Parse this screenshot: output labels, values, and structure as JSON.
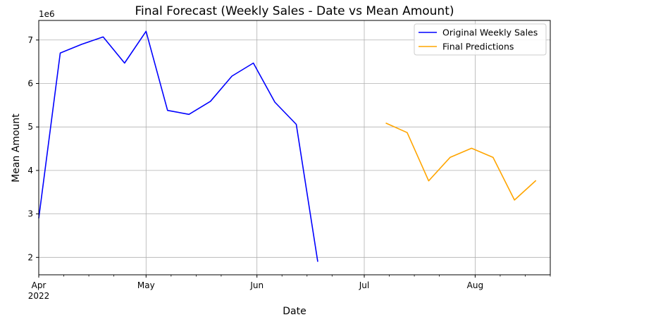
{
  "chart_data": {
    "type": "line",
    "title": "Final Forecast (Weekly Sales - Date vs Mean Amount)",
    "xlabel": "Date",
    "ylabel": "Mean Amount",
    "y_offset_label": "1e6",
    "y_scale_factor": 1000000,
    "grid": true,
    "legend_position": "top-right",
    "xlim": [
      "2022-04-01",
      "2022-08-22"
    ],
    "ylim": [
      1600000,
      7450000
    ],
    "y_ticks": [
      {
        "value": 2000000,
        "label": "2"
      },
      {
        "value": 3000000,
        "label": "3"
      },
      {
        "value": 4000000,
        "label": "4"
      },
      {
        "value": 5000000,
        "label": "5"
      },
      {
        "value": 6000000,
        "label": "6"
      },
      {
        "value": 7000000,
        "label": "7"
      }
    ],
    "x_major_ticks": [
      {
        "date": "2022-04-01",
        "label": "Apr",
        "sublabel": "2022"
      },
      {
        "date": "2022-05-01",
        "label": "May"
      },
      {
        "date": "2022-06-01",
        "label": "Jun"
      },
      {
        "date": "2022-07-01",
        "label": "Jul"
      },
      {
        "date": "2022-08-01",
        "label": "Aug"
      }
    ],
    "x_minor_ticks": [
      "2022-04-08",
      "2022-04-15",
      "2022-04-22",
      "2022-05-08",
      "2022-05-15",
      "2022-05-22",
      "2022-06-08",
      "2022-06-15",
      "2022-06-22",
      "2022-07-08",
      "2022-07-15",
      "2022-07-22",
      "2022-08-08",
      "2022-08-15",
      "2022-08-22"
    ],
    "series": [
      {
        "name": "Original Weekly Sales",
        "color": "#0000ff",
        "x": [
          "2022-04-01",
          "2022-04-07",
          "2022-04-13",
          "2022-04-19",
          "2022-04-25",
          "2022-05-01",
          "2022-05-07",
          "2022-05-13",
          "2022-05-19",
          "2022-05-25",
          "2022-05-31",
          "2022-06-06",
          "2022-06-12",
          "2022-06-18",
          "2022-06-24",
          "2022-07-01"
        ],
        "values": [
          2900000,
          6700000,
          6900000,
          7070000,
          6470000,
          7200000,
          5380000,
          5290000,
          5590000,
          6170000,
          6470000,
          5570000,
          5060000,
          1900000,
          null,
          null
        ]
      },
      {
        "name": "Final Predictions",
        "color": "#ffa500",
        "x": [
          "2022-07-07",
          "2022-07-13",
          "2022-07-19",
          "2022-07-25",
          "2022-07-31",
          "2022-08-06",
          "2022-08-12",
          "2022-08-18"
        ],
        "values": [
          5090000,
          4870000,
          3760000,
          4300000,
          4510000,
          4300000,
          3320000,
          3770000
        ]
      }
    ]
  }
}
